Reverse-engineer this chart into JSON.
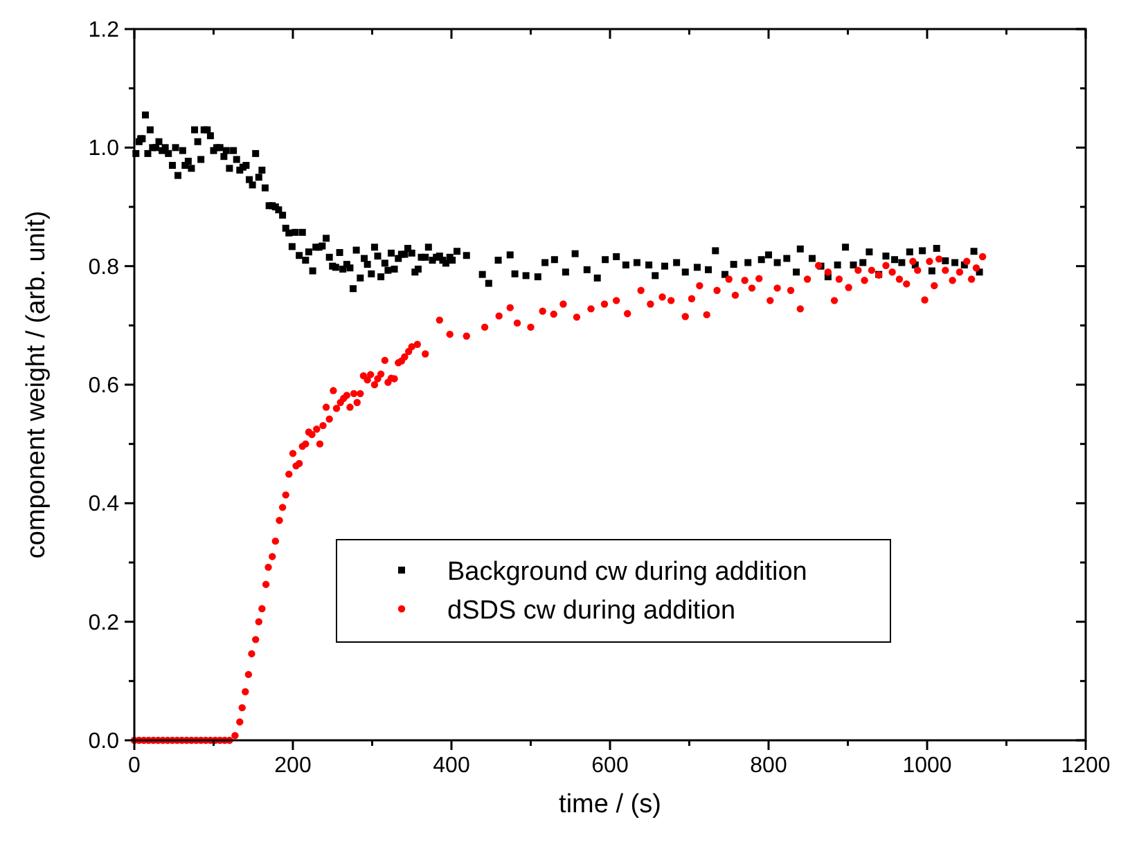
{
  "chart_data": {
    "type": "scatter",
    "xlabel": "time / (s)",
    "ylabel": "component weight / (arb. unit)",
    "xlim": [
      0,
      1200
    ],
    "ylim": [
      0,
      1.2
    ],
    "xticks": [
      0,
      {
        "value": 100,
        "label": null
      },
      200,
      {
        "value": 300,
        "label": null
      },
      400,
      {
        "value": 500,
        "label": null
      },
      600,
      {
        "value": 700,
        "label": null
      },
      800,
      {
        "value": 900,
        "label": null
      },
      1000,
      {
        "value": 1100,
        "label": null
      },
      1200
    ],
    "yticks": [
      {
        "value": 0,
        "label": "0.0"
      },
      {
        "value": 0.1,
        "label": null
      },
      0.2,
      {
        "value": 0.3,
        "label": null
      },
      0.4,
      {
        "value": 0.5,
        "label": null
      },
      0.6,
      {
        "value": 0.7,
        "label": null
      },
      0.8,
      {
        "value": 0.9,
        "label": null
      },
      {
        "value": 1,
        "label": "1.0"
      },
      {
        "value": 1.1,
        "label": null
      },
      1.2
    ],
    "grid": false,
    "legend": "bottom",
    "series": [
      {
        "name": "Background cw during addition",
        "color": "#000000",
        "marker": "square",
        "x": [
          2,
          6,
          8,
          10,
          14,
          17,
          20,
          23,
          27,
          31,
          35,
          39,
          43,
          48,
          52,
          55,
          61,
          64,
          68,
          72,
          76,
          80,
          84,
          88,
          92,
          96,
          100,
          104,
          108,
          113,
          116,
          120,
          125,
          129,
          133,
          137,
          141,
          145,
          149,
          153,
          157,
          161,
          165,
          170,
          174,
          178,
          182,
          187,
          191,
          195,
          199,
          203,
          208,
          212,
          216,
          220,
          225,
          229,
          233,
          237,
          242,
          246,
          250,
          254,
          259,
          263,
          268,
          272,
          276,
          280,
          285,
          290,
          294,
          299,
          303,
          307,
          311,
          316,
          320,
          324,
          328,
          333,
          337,
          341,
          345,
          350,
          354,
          358,
          362,
          367,
          371,
          376,
          381,
          385,
          389,
          393,
          398,
          401,
          407,
          419,
          439,
          447,
          459,
          474,
          480,
          494,
          509,
          518,
          530,
          544,
          556,
          571,
          584,
          594,
          608,
          620,
          634,
          649,
          657,
          669,
          684,
          695,
          710,
          724,
          733,
          745,
          756,
          774,
          791,
          800,
          811,
          823,
          835,
          840,
          855,
          866,
          875,
          887,
          897,
          907,
          919,
          927,
          939,
          948,
          959,
          968,
          978,
          985,
          994,
          1006,
          1012,
          1023,
          1035,
          1047,
          1059,
          1066
        ],
        "values": [
          0.99,
          1.01,
          1.015,
          1.015,
          1.055,
          0.99,
          1.03,
          1.0,
          1.0,
          1.01,
          0.995,
          1.0,
          0.99,
          0.97,
          1.0,
          0.953,
          0.995,
          0.97,
          0.977,
          0.965,
          1.03,
          1.01,
          0.98,
          1.03,
          1.03,
          1.02,
          0.995,
          1.0,
          1.0,
          0.985,
          0.995,
          0.965,
          0.995,
          0.98,
          0.962,
          0.967,
          0.97,
          0.946,
          0.937,
          0.99,
          0.95,
          0.962,
          0.932,
          0.902,
          0.902,
          0.9,
          0.895,
          0.886,
          0.864,
          0.856,
          0.833,
          0.857,
          0.818,
          0.857,
          0.81,
          0.824,
          0.792,
          0.832,
          0.832,
          0.834,
          0.847,
          0.815,
          0.8,
          0.798,
          0.823,
          0.795,
          0.803,
          0.797,
          0.762,
          0.827,
          0.78,
          0.813,
          0.803,
          0.787,
          0.832,
          0.817,
          0.782,
          0.805,
          0.793,
          0.822,
          0.795,
          0.813,
          0.82,
          0.82,
          0.83,
          0.822,
          0.79,
          0.795,
          0.815,
          0.815,
          0.832,
          0.81,
          0.815,
          0.817,
          0.81,
          0.805,
          0.815,
          0.81,
          0.825,
          0.818,
          0.786,
          0.771,
          0.81,
          0.819,
          0.787,
          0.784,
          0.782,
          0.806,
          0.811,
          0.79,
          0.821,
          0.794,
          0.78,
          0.811,
          0.816,
          0.802,
          0.806,
          0.802,
          0.784,
          0.8,
          0.806,
          0.79,
          0.798,
          0.794,
          0.826,
          0.786,
          0.803,
          0.806,
          0.811,
          0.819,
          0.806,
          0.813,
          0.79,
          0.829,
          0.813,
          0.8,
          0.782,
          0.802,
          0.832,
          0.802,
          0.806,
          0.824,
          0.786,
          0.817,
          0.811,
          0.806,
          0.824,
          0.802,
          0.826,
          0.792,
          0.83,
          0.809,
          0.806,
          0.802,
          0.825,
          0.79
        ]
      },
      {
        "name": "dSDS cw during addition",
        "color": "#ff0000",
        "marker": "circle",
        "x": [
          0,
          6,
          12,
          18,
          24,
          30,
          36,
          42,
          48,
          54,
          60,
          66,
          72,
          78,
          84,
          90,
          96,
          102,
          108,
          114,
          120,
          127,
          133,
          136,
          140,
          144,
          148,
          153,
          157,
          161,
          166,
          169,
          174,
          178,
          183,
          187,
          191,
          195,
          200,
          204,
          208,
          212,
          216,
          220,
          224,
          230,
          234,
          238,
          242,
          246,
          251,
          255,
          260,
          264,
          268,
          272,
          277,
          281,
          285,
          289,
          294,
          298,
          303,
          307,
          311,
          316,
          320,
          324,
          328,
          333,
          337,
          341,
          346,
          350,
          357,
          367,
          385,
          398,
          419,
          442,
          460,
          474,
          483,
          500,
          515,
          529,
          541,
          558,
          576,
          593,
          608,
          622,
          639,
          651,
          666,
          677,
          695,
          703,
          713,
          722,
          735,
          750,
          758,
          770,
          779,
          788,
          802,
          811,
          828,
          840,
          849,
          863,
          875,
          883,
          889,
          901,
          913,
          921,
          930,
          939,
          948,
          956,
          965,
          974,
          982,
          988,
          997,
          1003,
          1009,
          1015,
          1023,
          1032,
          1041,
          1050,
          1056,
          1062,
          1070
        ],
        "values": [
          0,
          0,
          0,
          0,
          0,
          0,
          0,
          0,
          0,
          0,
          0,
          0,
          0,
          0,
          0,
          0,
          0,
          0,
          0,
          0,
          0,
          0.008,
          0.031,
          0.055,
          0.082,
          0.111,
          0.146,
          0.17,
          0.2,
          0.222,
          0.263,
          0.292,
          0.31,
          0.336,
          0.371,
          0.393,
          0.414,
          0.449,
          0.484,
          0.463,
          0.467,
          0.496,
          0.5,
          0.52,
          0.516,
          0.525,
          0.5,
          0.531,
          0.562,
          0.542,
          0.59,
          0.56,
          0.57,
          0.577,
          0.582,
          0.562,
          0.585,
          0.57,
          0.585,
          0.615,
          0.608,
          0.617,
          0.6,
          0.61,
          0.618,
          0.641,
          0.604,
          0.611,
          0.61,
          0.637,
          0.64,
          0.647,
          0.656,
          0.664,
          0.668,
          0.652,
          0.709,
          0.685,
          0.682,
          0.697,
          0.716,
          0.73,
          0.704,
          0.697,
          0.724,
          0.719,
          0.736,
          0.714,
          0.728,
          0.736,
          0.742,
          0.72,
          0.759,
          0.736,
          0.748,
          0.742,
          0.715,
          0.745,
          0.767,
          0.718,
          0.759,
          0.778,
          0.751,
          0.776,
          0.763,
          0.779,
          0.742,
          0.763,
          0.759,
          0.728,
          0.778,
          0.801,
          0.79,
          0.742,
          0.778,
          0.764,
          0.793,
          0.776,
          0.793,
          0.785,
          0.801,
          0.79,
          0.778,
          0.77,
          0.808,
          0.793,
          0.743,
          0.808,
          0.767,
          0.812,
          0.793,
          0.776,
          0.79,
          0.808,
          0.778,
          0.797,
          0.816
        ]
      }
    ]
  }
}
